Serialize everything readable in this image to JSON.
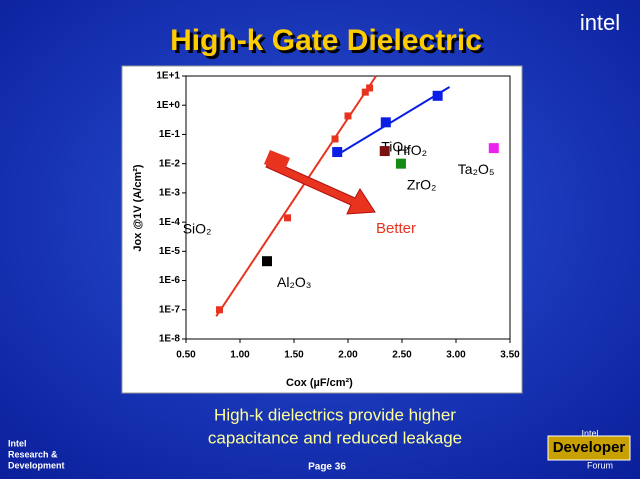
{
  "chart_data": {
    "type": "scatter",
    "title": "High-k Gate Dielectric",
    "x_label": "Cox (µF/cm²)",
    "y_label": "Jox @1V (A/cm²)",
    "log_y": true,
    "xlim": [
      0.5,
      3.5
    ],
    "xticks": [
      {
        "value": 0.5,
        "label": "0.50"
      },
      {
        "value": 1,
        "label": "1.00"
      },
      {
        "value": 1.5,
        "label": "1.50"
      },
      {
        "value": 2,
        "label": "2.00"
      },
      {
        "value": 2.5,
        "label": "2.50"
      },
      {
        "value": 3,
        "label": "3.00"
      },
      {
        "value": 3.5,
        "label": "3.50"
      }
    ],
    "ylim": [
      1e-08,
      10
    ],
    "yticks": [
      {
        "value": 1e-08,
        "label": "1E-8"
      },
      {
        "value": 1e-07,
        "label": "1E-7"
      },
      {
        "value": 1e-06,
        "label": "1E-6"
      },
      {
        "value": 1e-05,
        "label": "1E-5"
      },
      {
        "value": 0.0001,
        "label": "1E-4"
      },
      {
        "value": 0.001,
        "label": "1E-3"
      },
      {
        "value": 0.01,
        "label": "1E-2"
      },
      {
        "value": 0.1,
        "label": "1E-1"
      },
      {
        "value": 1,
        "label": "1E+0"
      },
      {
        "value": 10,
        "label": "1E+1"
      }
    ],
    "series": [
      {
        "name": "SiO₂",
        "color": "#e8331f",
        "x": [
          0.81,
          1.44,
          1.88,
          2.0,
          2.16,
          2.2
        ],
        "values": [
          1e-07,
          0.00014,
          0.07,
          0.43,
          2.8,
          3.9
        ]
      },
      {
        "name": "TiO₂",
        "color": "#0a1ee6",
        "x": [
          1.9,
          2.35,
          2.83
        ],
        "values": [
          0.025,
          0.26,
          2.1
        ]
      },
      {
        "name": "Al₂O₃",
        "color": "#000000",
        "x": [
          1.25
        ],
        "values": [
          4.6e-06
        ]
      },
      {
        "name": "HfO₂",
        "color": "#7a1010",
        "x": [
          2.34
        ],
        "values": [
          0.027
        ]
      },
      {
        "name": "ZrO₂",
        "color": "#148c14",
        "x": [
          2.49
        ],
        "values": [
          0.01
        ]
      },
      {
        "name": "Ta₂O₅",
        "color": "#ee22ee",
        "x": [
          3.35
        ],
        "values": [
          0.034
        ]
      }
    ],
    "fits": [
      {
        "color": "#e8331f",
        "x": [
          0.78,
          2.26
        ],
        "values": [
          6e-08,
          10
        ]
      },
      {
        "color": "#0a1ee6",
        "x": [
          1.9,
          2.94
        ],
        "values": [
          0.02,
          4.2
        ]
      }
    ],
    "annotation": "Better"
  },
  "slide": {
    "logo": "intel",
    "caption_lines": [
      "High-k dielectrics provide higher",
      "capacitance and reduced leakage"
    ],
    "org_lines": [
      "Intel",
      "Research &",
      "Development"
    ],
    "page": "Page 36",
    "forum_lines": [
      "Intel",
      "Developer",
      "Forum"
    ]
  }
}
